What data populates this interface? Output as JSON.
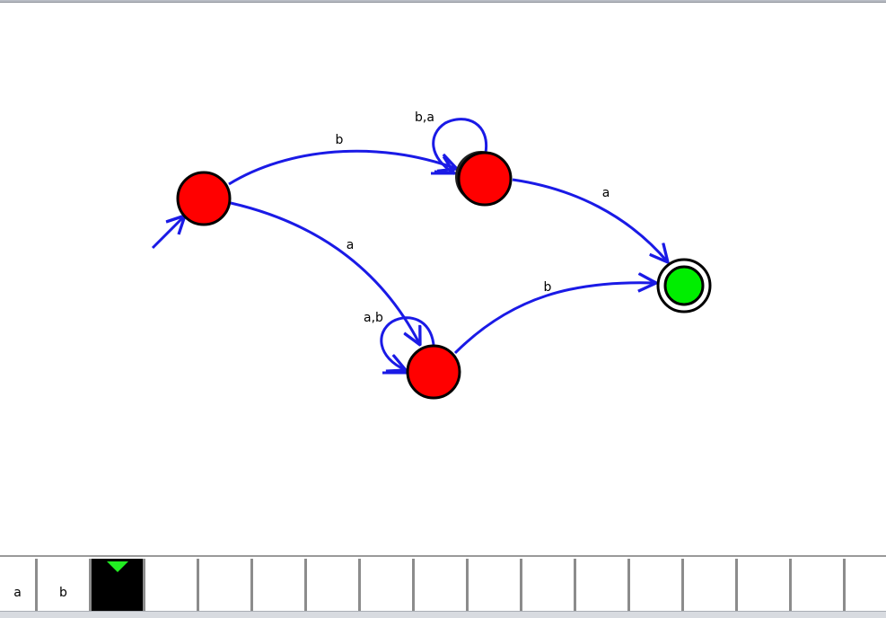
{
  "diagram": {
    "type": "finite-automaton",
    "colors": {
      "state_fill": "#ff0000",
      "accept_fill": "#00ee00",
      "edge": "#1a1ae6",
      "outline": "#000000"
    },
    "states": [
      {
        "id": "q0",
        "initial": true,
        "accepting": false
      },
      {
        "id": "q1",
        "initial": false,
        "accepting": false
      },
      {
        "id": "q2",
        "initial": false,
        "accepting": false
      },
      {
        "id": "q3",
        "initial": false,
        "accepting": true
      }
    ],
    "transitions": [
      {
        "from": "q0",
        "to": "q1",
        "label": "b"
      },
      {
        "from": "q0",
        "to": "q2",
        "label": "a"
      },
      {
        "from": "q1",
        "to": "q1",
        "label": "b,a"
      },
      {
        "from": "q2",
        "to": "q2",
        "label": "a,b"
      },
      {
        "from": "q1",
        "to": "q3",
        "label": "a"
      },
      {
        "from": "q2",
        "to": "q3",
        "label": "b"
      }
    ]
  },
  "tape": {
    "head_index": 2,
    "cells": [
      "a",
      "b",
      "",
      "",
      "",
      "",
      "",
      "",
      "",
      "",
      "",
      "",
      "",
      "",
      "",
      "",
      ""
    ]
  }
}
